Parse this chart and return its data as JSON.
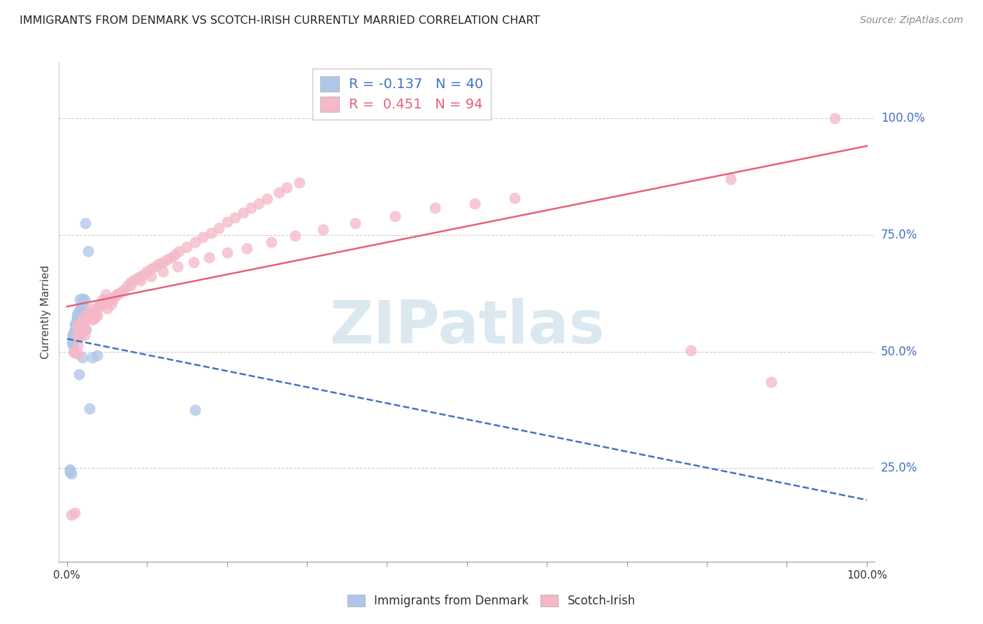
{
  "title": "IMMIGRANTS FROM DENMARK VS SCOTCH-IRISH CURRENTLY MARRIED CORRELATION CHART",
  "source": "Source: ZipAtlas.com",
  "ylabel": "Currently Married",
  "denmark_color": "#aec6e8",
  "scotch_color": "#f4b8c8",
  "denmark_line_color": "#4472c4",
  "scotch_line_color": "#e8607a",
  "ytick_labels": [
    "25.0%",
    "50.0%",
    "75.0%",
    "100.0%"
  ],
  "ytick_positions": [
    0.25,
    0.5,
    0.75,
    1.0
  ],
  "watermark_color": "#dce8f0",
  "background_color": "#ffffff",
  "denmark_R": -0.137,
  "denmark_N": 40,
  "scotch_R": 0.451,
  "scotch_N": 94,
  "dk_x": [
    0.004,
    0.004,
    0.006,
    0.007,
    0.007,
    0.008,
    0.009,
    0.009,
    0.01,
    0.01,
    0.011,
    0.011,
    0.012,
    0.012,
    0.013,
    0.013,
    0.014,
    0.015,
    0.015,
    0.016,
    0.017,
    0.018,
    0.019,
    0.02,
    0.022,
    0.024,
    0.026,
    0.028,
    0.032,
    0.038,
    0.004,
    0.005,
    0.007,
    0.008,
    0.01,
    0.012,
    0.015,
    0.019,
    0.023,
    0.16
  ],
  "dk_y": [
    0.245,
    0.248,
    0.52,
    0.515,
    0.535,
    0.54,
    0.525,
    0.53,
    0.545,
    0.56,
    0.548,
    0.558,
    0.572,
    0.578,
    0.566,
    0.582,
    0.568,
    0.588,
    0.572,
    0.612,
    0.584,
    0.598,
    0.614,
    0.598,
    0.612,
    0.548,
    0.715,
    0.378,
    0.488,
    0.492,
    0.242,
    0.238,
    0.532,
    0.518,
    0.548,
    0.558,
    0.452,
    0.488,
    0.775,
    0.375
  ],
  "sc_x": [
    0.005,
    0.008,
    0.01,
    0.012,
    0.013,
    0.014,
    0.015,
    0.016,
    0.018,
    0.019,
    0.02,
    0.022,
    0.023,
    0.025,
    0.026,
    0.027,
    0.028,
    0.03,
    0.032,
    0.034,
    0.036,
    0.038,
    0.04,
    0.042,
    0.045,
    0.048,
    0.05,
    0.055,
    0.058,
    0.062,
    0.065,
    0.07,
    0.075,
    0.08,
    0.085,
    0.09,
    0.095,
    0.1,
    0.105,
    0.11,
    0.115,
    0.12,
    0.125,
    0.13,
    0.135,
    0.14,
    0.15,
    0.16,
    0.17,
    0.18,
    0.19,
    0.2,
    0.21,
    0.22,
    0.23,
    0.24,
    0.25,
    0.265,
    0.275,
    0.29,
    0.012,
    0.015,
    0.018,
    0.022,
    0.026,
    0.03,
    0.035,
    0.04,
    0.048,
    0.055,
    0.062,
    0.07,
    0.08,
    0.092,
    0.105,
    0.12,
    0.138,
    0.158,
    0.178,
    0.2,
    0.225,
    0.255,
    0.285,
    0.32,
    0.36,
    0.41,
    0.46,
    0.51,
    0.56,
    0.78,
    0.83,
    0.88,
    0.96,
    0.01
  ],
  "sc_y": [
    0.15,
    0.5,
    0.498,
    0.532,
    0.515,
    0.495,
    0.542,
    0.532,
    0.555,
    0.548,
    0.572,
    0.535,
    0.548,
    0.582,
    0.572,
    0.578,
    0.578,
    0.592,
    0.568,
    0.572,
    0.582,
    0.578,
    0.602,
    0.598,
    0.612,
    0.622,
    0.592,
    0.602,
    0.612,
    0.622,
    0.625,
    0.632,
    0.642,
    0.65,
    0.655,
    0.66,
    0.665,
    0.672,
    0.678,
    0.682,
    0.688,
    0.692,
    0.698,
    0.702,
    0.708,
    0.715,
    0.725,
    0.735,
    0.745,
    0.755,
    0.765,
    0.778,
    0.788,
    0.798,
    0.808,
    0.818,
    0.828,
    0.842,
    0.852,
    0.862,
    0.555,
    0.56,
    0.545,
    0.568,
    0.572,
    0.58,
    0.59,
    0.598,
    0.61,
    0.615,
    0.622,
    0.63,
    0.642,
    0.652,
    0.662,
    0.672,
    0.682,
    0.692,
    0.702,
    0.712,
    0.722,
    0.735,
    0.748,
    0.762,
    0.775,
    0.79,
    0.808,
    0.818,
    0.83,
    0.502,
    0.87,
    0.435,
    1.0,
    0.155
  ]
}
